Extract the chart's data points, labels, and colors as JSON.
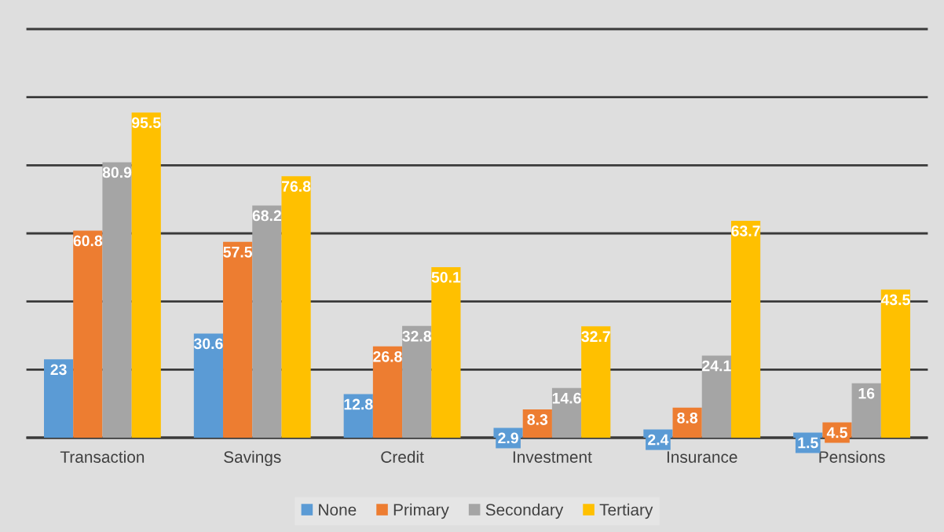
{
  "chart_data": {
    "type": "bar",
    "categories": [
      "Transaction",
      "Savings",
      "Credit",
      "Investment",
      "Insurance",
      "Pensions"
    ],
    "series": [
      {
        "name": "None",
        "color": "#5b9bd5",
        "values": [
          23,
          30.6,
          12.8,
          2.9,
          2.4,
          1.5
        ]
      },
      {
        "name": "Primary",
        "color": "#ed7d31",
        "values": [
          60.8,
          57.5,
          26.8,
          8.3,
          8.8,
          4.5
        ]
      },
      {
        "name": "Secondary",
        "color": "#a5a5a5",
        "values": [
          80.9,
          68.2,
          32.8,
          14.6,
          24.1,
          16
        ]
      },
      {
        "name": "Tertiary",
        "color": "#ffc000",
        "values": [
          95.5,
          76.8,
          50.1,
          32.7,
          63.7,
          43.5
        ]
      }
    ],
    "ylim": [
      0,
      120
    ],
    "yticks": [
      {
        "value": 0,
        "label": null
      },
      {
        "value": 20,
        "label": null
      },
      {
        "value": 40,
        "label": null
      },
      {
        "value": 60,
        "label": null
      },
      {
        "value": 80,
        "label": null
      },
      {
        "value": 100,
        "label": null
      },
      {
        "value": 120,
        "label": null
      }
    ],
    "grid": "y",
    "legend": "bottom",
    "data_labels": true,
    "tick_labels": "x"
  }
}
